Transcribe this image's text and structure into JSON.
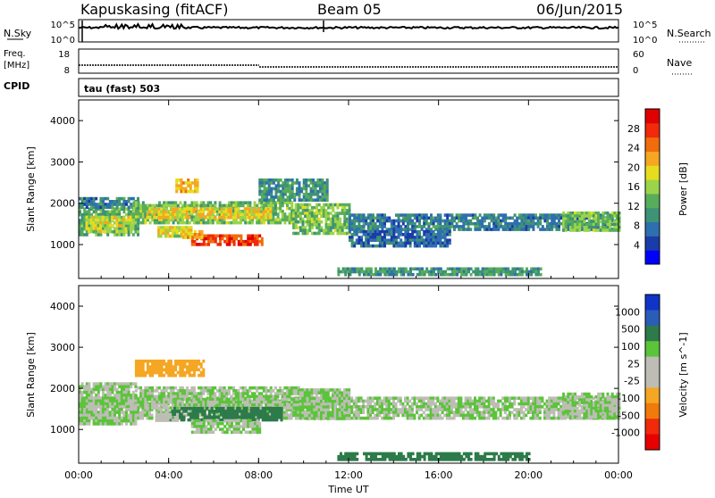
{
  "header": {
    "station": "Kapuskasing (fitACF)",
    "beam": "Beam 05",
    "date": "06/Jun/2015"
  },
  "top_panels": {
    "nsky_label": "N.Sky",
    "nsearch_label": "N.Search",
    "noise_ticks_left": [
      "10^5",
      "10^0"
    ],
    "noise_ticks_right": [
      "10^5",
      "10^0"
    ],
    "freq_label_line1": "Freq.",
    "freq_label_line2": "[MHz]",
    "freq_ticks": [
      "18",
      "8"
    ],
    "nave_label": "Nave",
    "nave_ticks": [
      "60",
      "0"
    ],
    "cpid_label": "CPID",
    "cpid_value": "tau (fast) 503"
  },
  "colors": {
    "power_scale": [
      "#0000ff",
      "#1a3ca8",
      "#2f6fb0",
      "#3e9276",
      "#58ad5a",
      "#9bd44a",
      "#e6dd1e",
      "#f5a623",
      "#f06c0c",
      "#f02a0a",
      "#e00000"
    ],
    "velocity_scale": [
      "#1034c8",
      "#2a5db8",
      "#2d7a4a",
      "#5bc43a",
      "#bdbdb5",
      "#bdbdb5",
      "#f5a623",
      "#f07a0c",
      "#f02a0a",
      "#e60000"
    ]
  },
  "chart_data": [
    {
      "type": "heatmap",
      "panel": "power",
      "ylabel": "Slant Range [km]",
      "ylim": [
        180,
        4500
      ],
      "yticks": [
        "1000",
        "2000",
        "3000",
        "4000"
      ],
      "xlim": [
        0,
        24
      ],
      "colorbar_label": "Power [dB]",
      "colorbar_ticks": [
        "4",
        "8",
        "12",
        "16",
        "20",
        "24",
        "28"
      ],
      "colorbar_range": [
        0,
        32
      ],
      "regions": [
        {
          "t0": 0.0,
          "t1": 2.6,
          "r0": 1250,
          "r1": 1900,
          "v": 12
        },
        {
          "t0": 0.0,
          "t1": 2.6,
          "r0": 1900,
          "r1": 2150,
          "v": 8
        },
        {
          "t0": 0.3,
          "t1": 2.4,
          "r0": 1350,
          "r1": 1700,
          "v": 18
        },
        {
          "t0": 2.4,
          "t1": 9.5,
          "r0": 1500,
          "r1": 2050,
          "v": 14
        },
        {
          "t0": 3.0,
          "t1": 8.5,
          "r0": 1650,
          "r1": 1900,
          "v": 20
        },
        {
          "t0": 3.5,
          "t1": 5.0,
          "r0": 1200,
          "r1": 1450,
          "v": 18
        },
        {
          "t0": 5.0,
          "t1": 8.2,
          "r0": 980,
          "r1": 1250,
          "v": 28
        },
        {
          "t0": 4.5,
          "t1": 5.5,
          "r0": 1200,
          "r1": 1350,
          "v": 22
        },
        {
          "t0": 9.5,
          "t1": 12.0,
          "r0": 1300,
          "r1": 2000,
          "v": 14
        },
        {
          "t0": 12.0,
          "t1": 24.0,
          "r0": 1350,
          "r1": 1750,
          "v": 8
        },
        {
          "t0": 12.0,
          "t1": 16.5,
          "r0": 1000,
          "r1": 1350,
          "v": 6
        },
        {
          "t0": 21.5,
          "t1": 24.0,
          "r0": 1350,
          "r1": 1800,
          "v": 14
        },
        {
          "t0": 8.0,
          "t1": 11.0,
          "r0": 2100,
          "r1": 2600,
          "v": 10
        },
        {
          "t0": 4.3,
          "t1": 5.3,
          "r0": 2300,
          "r1": 2600,
          "v": 22
        },
        {
          "t0": 11.5,
          "t1": 20.5,
          "r0": 250,
          "r1": 450,
          "v": 10
        }
      ]
    },
    {
      "type": "heatmap",
      "panel": "velocity",
      "ylabel": "Slant Range [km]",
      "ylim": [
        180,
        4500
      ],
      "yticks": [
        "1000",
        "2000",
        "3000",
        "4000"
      ],
      "xlim": [
        0,
        24
      ],
      "xticks": [
        "00:00",
        "04:00",
        "08:00",
        "12:00",
        "16:00",
        "20:00",
        "00:00"
      ],
      "xlabel": "Time UT",
      "colorbar_label": "Velocity [m s^-1]",
      "colorbar_ticks": [
        "1000",
        "500",
        "100",
        "25",
        "-25",
        "-100",
        "-500",
        "-1000"
      ],
      "regions": [
        {
          "t0": 0.0,
          "t1": 24.0,
          "r0": 1300,
          "r1": 1800,
          "v": 0
        },
        {
          "t0": 0.0,
          "t1": 2.5,
          "r0": 1150,
          "r1": 2150,
          "v": 0
        },
        {
          "t0": 2.5,
          "t1": 9.8,
          "r0": 1550,
          "r1": 2050,
          "v": 0
        },
        {
          "t0": 9.8,
          "t1": 12.0,
          "r0": 1250,
          "r1": 2000,
          "v": 0
        },
        {
          "t0": 21.5,
          "t1": 24.0,
          "r0": 1300,
          "r1": 1900,
          "v": 0
        },
        {
          "t0": 4.0,
          "t1": 9.0,
          "r0": 1250,
          "r1": 1550,
          "v": 60
        },
        {
          "t0": 5.0,
          "t1": 8.0,
          "r0": 950,
          "r1": 1250,
          "v": 0
        },
        {
          "t0": 3.4,
          "t1": 4.4,
          "r0": 1250,
          "r1": 1400,
          "v": -60
        },
        {
          "t0": 11.5,
          "t1": 20.0,
          "r0": 250,
          "r1": 450,
          "v": 60
        },
        {
          "t0": 2.5,
          "t1": 5.5,
          "r0": 2300,
          "r1": 2700,
          "v": -300
        }
      ]
    }
  ]
}
